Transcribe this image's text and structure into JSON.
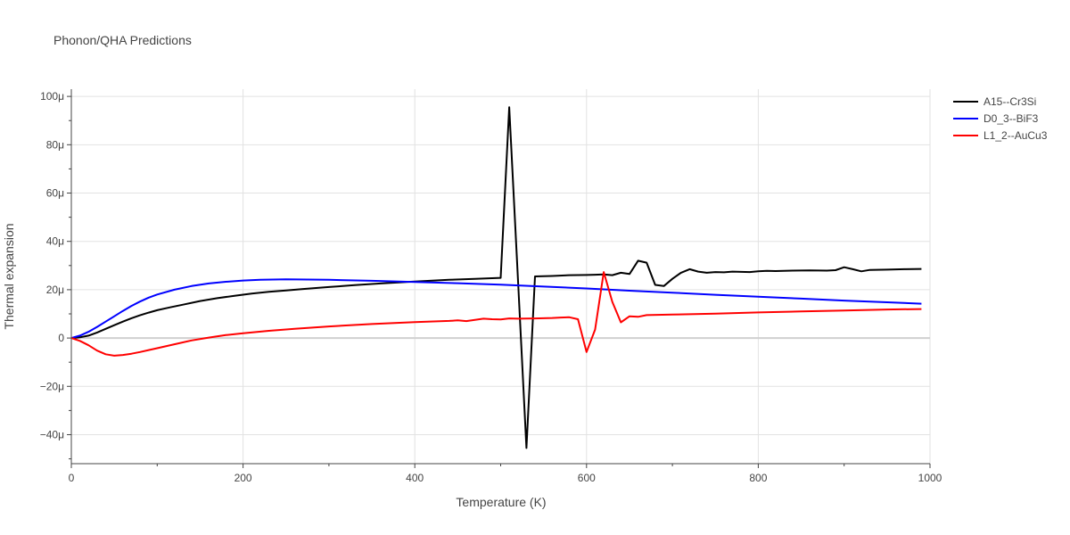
{
  "chart_data": {
    "type": "line",
    "title": "Phonon/QHA Predictions",
    "xlabel": "Temperature (K)",
    "ylabel": "Thermal expansion",
    "xlim": [
      0,
      1000
    ],
    "ylim": [
      -52,
      103
    ],
    "x_ticks": [
      0,
      200,
      400,
      600,
      800,
      1000
    ],
    "x_tick_labels": [
      "0",
      "200",
      "400",
      "600",
      "800",
      "1000"
    ],
    "y_ticks": [
      -40,
      -20,
      0,
      20,
      40,
      60,
      80,
      100
    ],
    "y_tick_labels": [
      "−40μ",
      "−20μ",
      "0",
      "20μ",
      "40μ",
      "60μ",
      "80μ",
      "100μ"
    ],
    "grid": true,
    "legend_position": "top-right",
    "y_unit_note": "values in units of 1e-6 (μ) per K",
    "series": [
      {
        "name": "A15--Cr3Si",
        "color": "#000000",
        "x": [
          0,
          10,
          20,
          30,
          40,
          50,
          60,
          70,
          80,
          90,
          100,
          115,
          130,
          150,
          170,
          190,
          210,
          230,
          250,
          270,
          300,
          330,
          360,
          400,
          440,
          470,
          500,
          510,
          520,
          530,
          540,
          560,
          580,
          600,
          610,
          620,
          630,
          640,
          650,
          660,
          670,
          680,
          690,
          700,
          710,
          720,
          730,
          740,
          750,
          760,
          770,
          780,
          790,
          800,
          810,
          820,
          830,
          840,
          860,
          880,
          890,
          900,
          910,
          920,
          930,
          950,
          970,
          990
        ],
        "y": [
          0,
          0.3,
          1.0,
          2.3,
          3.8,
          5.3,
          6.8,
          8.2,
          9.4,
          10.5,
          11.5,
          12.7,
          13.8,
          15.3,
          16.5,
          17.5,
          18.4,
          19.1,
          19.7,
          20.3,
          21.1,
          21.9,
          22.6,
          23.4,
          24.1,
          24.5,
          24.9,
          95.5,
          25.0,
          -45.5,
          25.5,
          25.7,
          26.0,
          26.1,
          26.2,
          26.3,
          26.0,
          27.0,
          26.5,
          32.0,
          31.2,
          22.0,
          21.5,
          24.5,
          27.0,
          28.5,
          27.5,
          27.0,
          27.3,
          27.2,
          27.5,
          27.4,
          27.3,
          27.6,
          27.8,
          27.7,
          27.8,
          27.9,
          28.0,
          27.9,
          28.1,
          29.3,
          28.5,
          27.6,
          28.2,
          28.3,
          28.5,
          28.6
        ]
      },
      {
        "name": "D0_3--BiF3",
        "color": "#0000ff",
        "x": [
          0,
          10,
          20,
          30,
          40,
          50,
          60,
          70,
          80,
          90,
          100,
          120,
          140,
          160,
          180,
          200,
          220,
          250,
          300,
          350,
          400,
          450,
          500,
          550,
          600,
          650,
          700,
          750,
          800,
          850,
          900,
          950,
          990
        ],
        "y": [
          0,
          1.0,
          2.6,
          4.6,
          6.8,
          9.0,
          11.2,
          13.3,
          15.1,
          16.7,
          18.0,
          20.0,
          21.5,
          22.6,
          23.3,
          23.8,
          24.1,
          24.3,
          24.1,
          23.7,
          23.2,
          22.7,
          22.1,
          21.3,
          20.5,
          19.6,
          18.8,
          17.9,
          17.1,
          16.3,
          15.5,
          14.8,
          14.2
        ]
      },
      {
        "name": "L1_2--AuCu3",
        "color": "#ff0000",
        "x": [
          0,
          10,
          20,
          30,
          40,
          50,
          60,
          70,
          80,
          90,
          100,
          120,
          140,
          160,
          180,
          200,
          230,
          260,
          300,
          350,
          400,
          440,
          450,
          460,
          470,
          480,
          490,
          500,
          510,
          520,
          540,
          560,
          570,
          580,
          590,
          600,
          610,
          620,
          630,
          640,
          650,
          660,
          670,
          700,
          750,
          800,
          850,
          900,
          950,
          990
        ],
        "y": [
          0,
          -1.2,
          -3.0,
          -5.2,
          -6.7,
          -7.3,
          -7.0,
          -6.5,
          -5.8,
          -5.0,
          -4.2,
          -2.6,
          -1.0,
          0.2,
          1.2,
          2.0,
          3.0,
          3.8,
          4.8,
          5.8,
          6.6,
          7.1,
          7.3,
          7.0,
          7.5,
          8.0,
          7.8,
          7.7,
          8.1,
          8.0,
          8.1,
          8.3,
          8.5,
          8.6,
          7.8,
          -5.8,
          3.5,
          27.3,
          15.0,
          6.5,
          9.0,
          8.8,
          9.5,
          9.7,
          10.1,
          10.6,
          11.0,
          11.4,
          11.8,
          12.0
        ]
      }
    ]
  }
}
